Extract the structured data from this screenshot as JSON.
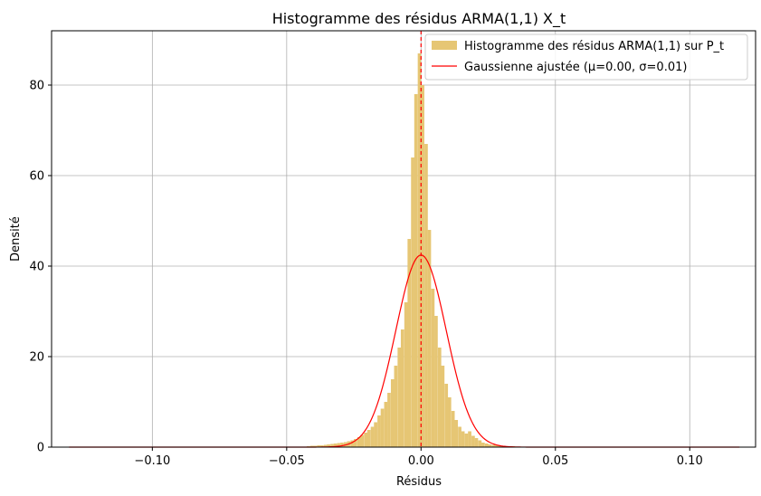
{
  "chart_data": {
    "type": "bar",
    "title": "Histogramme des résidus ARMA(1,1) X_t",
    "xlabel": "Résidus",
    "ylabel": "Densité",
    "xlim": [
      -0.1375,
      0.1245
    ],
    "ylim": [
      0,
      92
    ],
    "xticks": [
      -0.1,
      -0.05,
      0.0,
      0.05,
      0.1
    ],
    "xtick_labels": [
      "−0.10",
      "−0.05",
      "0.00",
      "0.05",
      "0.10"
    ],
    "yticks": [
      0,
      20,
      40,
      60,
      80
    ],
    "ytick_labels": [
      "0",
      "20",
      "40",
      "60",
      "80"
    ],
    "grid": true,
    "legend_position": "top-right",
    "colors": {
      "bars": "#e6c674",
      "curve": "#ff0000",
      "mean_line": "#ff0000",
      "grid": "#b0b0b0"
    },
    "series": [
      {
        "name": "Histogramme des résidus ARMA(1,1) sur P_t",
        "type": "bar",
        "bin_width": 0.00125,
        "bin_centers": [
          -0.0419,
          -0.0406,
          -0.0394,
          -0.0381,
          -0.0369,
          -0.0356,
          -0.0344,
          -0.0331,
          -0.0319,
          -0.0306,
          -0.0294,
          -0.0281,
          -0.0269,
          -0.0256,
          -0.0244,
          -0.0231,
          -0.0219,
          -0.0206,
          -0.0194,
          -0.0181,
          -0.0169,
          -0.0156,
          -0.0144,
          -0.0131,
          -0.0119,
          -0.0106,
          -0.0094,
          -0.0081,
          -0.0069,
          -0.0056,
          -0.0044,
          -0.0031,
          -0.0019,
          -0.0006,
          0.0006,
          0.0019,
          0.0031,
          0.0044,
          0.0056,
          0.0069,
          0.0081,
          0.0094,
          0.0106,
          0.0119,
          0.0131,
          0.0144,
          0.0156,
          0.0169,
          0.0181,
          0.0194,
          0.0206,
          0.0219,
          0.0231,
          0.0244,
          0.0256,
          0.0269,
          0.0281,
          0.0294,
          0.0306,
          0.0319,
          0.0331,
          0.0344,
          0.0356,
          0.0369,
          0.0381,
          0.0394,
          0.0406,
          0.0419
        ],
        "values": [
          0.2,
          0.3,
          0.3,
          0.4,
          0.4,
          0.5,
          0.6,
          0.7,
          0.8,
          0.9,
          1.0,
          1.1,
          1.3,
          1.5,
          1.8,
          2.2,
          2.7,
          3.2,
          3.8,
          4.5,
          5.5,
          7.0,
          8.5,
          10.0,
          12.0,
          15.0,
          18.0,
          22.0,
          26.0,
          32.0,
          46.0,
          64.0,
          78.0,
          87.0,
          80.0,
          67.0,
          48.0,
          35.0,
          29.0,
          22.0,
          18.0,
          14.0,
          11.0,
          8.0,
          6.0,
          4.5,
          3.5,
          3.0,
          3.5,
          2.5,
          2.0,
          1.5,
          1.0,
          0.8,
          0.6,
          0.5,
          0.4,
          0.3,
          0.3,
          0.2,
          0.2,
          0.2,
          0.1,
          0.1,
          0.1,
          0.1,
          0.1,
          0.1
        ]
      },
      {
        "name": "Gaussienne ajustée (μ=0.00, σ=0.01)",
        "type": "line",
        "mean": 0.0,
        "sigma": 0.0094,
        "x_range": [
          -0.131,
          0.1185
        ]
      }
    ],
    "annotations": [
      {
        "type": "vline",
        "x": 0.0,
        "style": "dashed"
      }
    ]
  }
}
